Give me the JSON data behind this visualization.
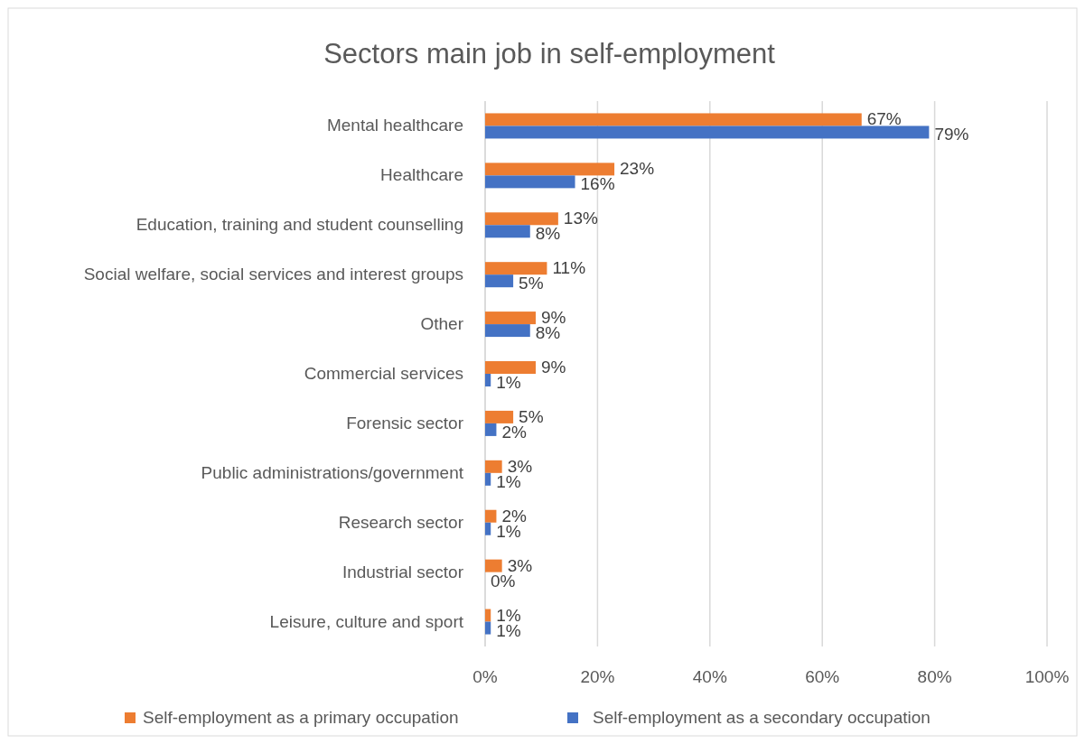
{
  "chart_data": {
    "type": "bar",
    "orientation": "horizontal",
    "title": "Sectors main job in self-employment",
    "categories": [
      "Mental healthcare",
      "Healthcare",
      "Education, training and student counselling",
      "Social welfare, social services and interest groups",
      "Other",
      "Commercial services",
      "Forensic sector",
      "Public administrations/government",
      "Research sector",
      "Industrial sector",
      "Leisure, culture and sport"
    ],
    "series": [
      {
        "name": "Self-employment as a primary occupation",
        "color": "#ed7d31",
        "values": [
          67,
          23,
          13,
          11,
          9,
          9,
          5,
          3,
          2,
          3,
          1
        ],
        "value_labels": [
          "67%",
          "23%",
          "13%",
          "11%",
          "9%",
          "9%",
          "5%",
          "3%",
          "2%",
          "3%",
          "1%"
        ]
      },
      {
        "name": "Self-employment as a secondary occupation",
        "color": "#4472c4",
        "values": [
          79,
          16,
          8,
          5,
          8,
          1,
          2,
          1,
          1,
          0,
          1
        ],
        "value_labels": [
          "79%",
          "16%",
          "8%",
          "5%",
          "8%",
          "1%",
          "2%",
          "1%",
          "1%",
          "0%",
          "1%"
        ]
      }
    ],
    "xlim": [
      0,
      100
    ],
    "xticks": [
      {
        "value": 0,
        "label": "0%"
      },
      {
        "value": 20,
        "label": "20%"
      },
      {
        "value": 40,
        "label": "40%"
      },
      {
        "value": 60,
        "label": "60%"
      },
      {
        "value": 80,
        "label": "80%"
      },
      {
        "value": 100,
        "label": "100%"
      }
    ],
    "grid": "x",
    "legend": "bottom"
  }
}
